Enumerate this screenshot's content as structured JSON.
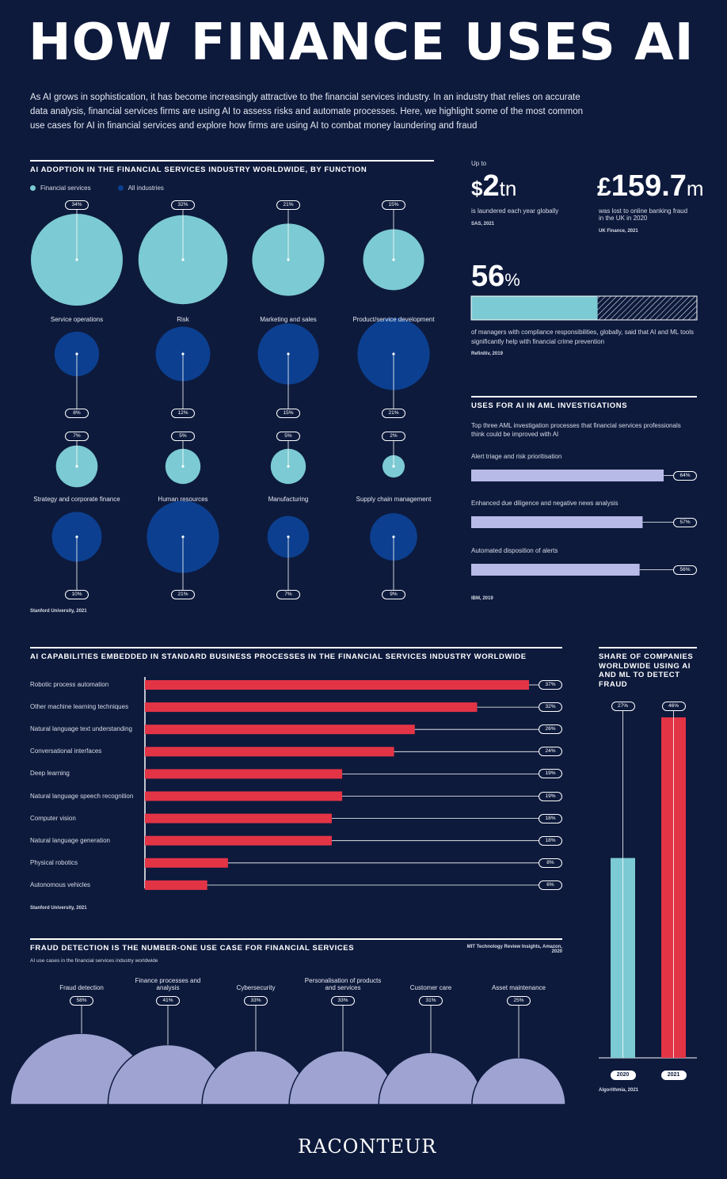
{
  "title": "HOW FINANCE USES AI",
  "intro": "As AI grows in sophistication, it has become increasingly attractive to the financial services industry. In an industry that relies on accurate data analysis, financial services firms are using AI to assess risks and automate processes. Here, we highlight some of the most common use cases for AI in financial services and explore how firms are using AI to combat money laundering and fraud",
  "colors": {
    "background": "#0d1a3c",
    "light_blue": "#7ccad3",
    "dark_blue": "#0c3f8f",
    "red": "#e33446",
    "lavender": "#9ea3d1",
    "aml_bar": "#b7b9e6"
  },
  "stats": {
    "laundered": {
      "prefix": "Up to",
      "currency": "$",
      "value": "2",
      "unit": "tn",
      "text": "is laundered each year globally",
      "source": "SAS, 2021"
    },
    "fraud_uk": {
      "currency": "£",
      "value": "159.7",
      "unit": "m",
      "text": "was lost to online banking fraud in the UK in 2020",
      "source": "UK Finance, 2021"
    },
    "managers": {
      "value": "56",
      "unit": "%",
      "fill": 56,
      "text": "of managers with compliance responsibilities, globally, said that AI and ML tools significantly help with financial crime prevention",
      "source": "Refinitiv, 2019"
    }
  },
  "chart_data": [
    {
      "type": "bubble",
      "title": "AI ADOPTION IN THE FINANCIAL SERVICES INDUSTRY WORLDWIDE, BY FUNCTION",
      "legend": [
        "Financial services",
        "All industries"
      ],
      "categories": [
        "Service operations",
        "Risk",
        "Marketing and sales",
        "Product/service development",
        "Strategy and corporate finance",
        "Human resources",
        "Manufacturing",
        "Supply chain management"
      ],
      "series": [
        {
          "name": "Financial services",
          "values": [
            34,
            32,
            21,
            15,
            7,
            5,
            5,
            2
          ],
          "labels": [
            "34%",
            "32%",
            "21%",
            "15%",
            "7%",
            "5%",
            "5%",
            "2%"
          ]
        },
        {
          "name": "All industries",
          "values": [
            8,
            12,
            15,
            21,
            10,
            21,
            7,
            9
          ],
          "labels": [
            "8%",
            "12%",
            "15%",
            "21%",
            "10%",
            "21%",
            "7%",
            "9%"
          ]
        }
      ],
      "source": "Stanford University, 2021"
    },
    {
      "type": "bar",
      "title": "USES FOR AI IN AML INVESTIGATIONS",
      "subtitle": "Top three AML investigation processes that financial services professionals think could be improved with AI",
      "categories": [
        "Alert triage and risk prioritisation",
        "Enhanced due diligence and negative news analysis",
        "Automated disposition of alerts"
      ],
      "values": [
        64,
        57,
        56
      ],
      "labels": [
        "64%",
        "57%",
        "56%"
      ],
      "source": "IBM, 2019"
    },
    {
      "type": "bar",
      "title": "AI CAPABILITIES EMBEDDED IN STANDARD BUSINESS PROCESSES IN THE FINANCIAL SERVICES INDUSTRY WORLDWIDE",
      "categories": [
        "Robotic process automation",
        "Other machine learning techniques",
        "Natural language text understanding",
        "Conversational interfaces",
        "Deep learning",
        "Natural language speech recognition",
        "Computer vision",
        "Natural language generation",
        "Physical robotics",
        "Autonomous vehicles"
      ],
      "values": [
        37,
        32,
        26,
        24,
        19,
        19,
        18,
        18,
        8,
        6
      ],
      "labels": [
        "37%",
        "32%",
        "26%",
        "24%",
        "19%",
        "19%",
        "18%",
        "18%",
        "8%",
        "6%"
      ],
      "xlim": [
        0,
        40
      ],
      "source": "Stanford University, 2021"
    },
    {
      "type": "bar",
      "title": "SHARE OF COMPANIES WORLDWIDE USING AI AND ML TO DETECT FRAUD",
      "categories": [
        "2020",
        "2021"
      ],
      "values": [
        27,
        46
      ],
      "labels": [
        "27%",
        "46%"
      ],
      "source": "Algorithmia, 2021"
    },
    {
      "type": "bubble",
      "title": "FRAUD DETECTION IS THE NUMBER-ONE USE CASE FOR FINANCIAL SERVICES",
      "subtitle": "AI use cases in the financial services industry worldwide",
      "categories": [
        "Fraud detection",
        "Finance processes and analysis",
        "Cybersecurity",
        "Personalisation of products and services",
        "Customer care",
        "Asset maintenance"
      ],
      "values": [
        58,
        41,
        33,
        33,
        31,
        25
      ],
      "labels": [
        "58%",
        "41%",
        "33%",
        "33%",
        "31%",
        "25%"
      ],
      "source": "MIT Technology Review Insights, Amazon, 2020"
    }
  ],
  "logo": "RACONTEUR"
}
